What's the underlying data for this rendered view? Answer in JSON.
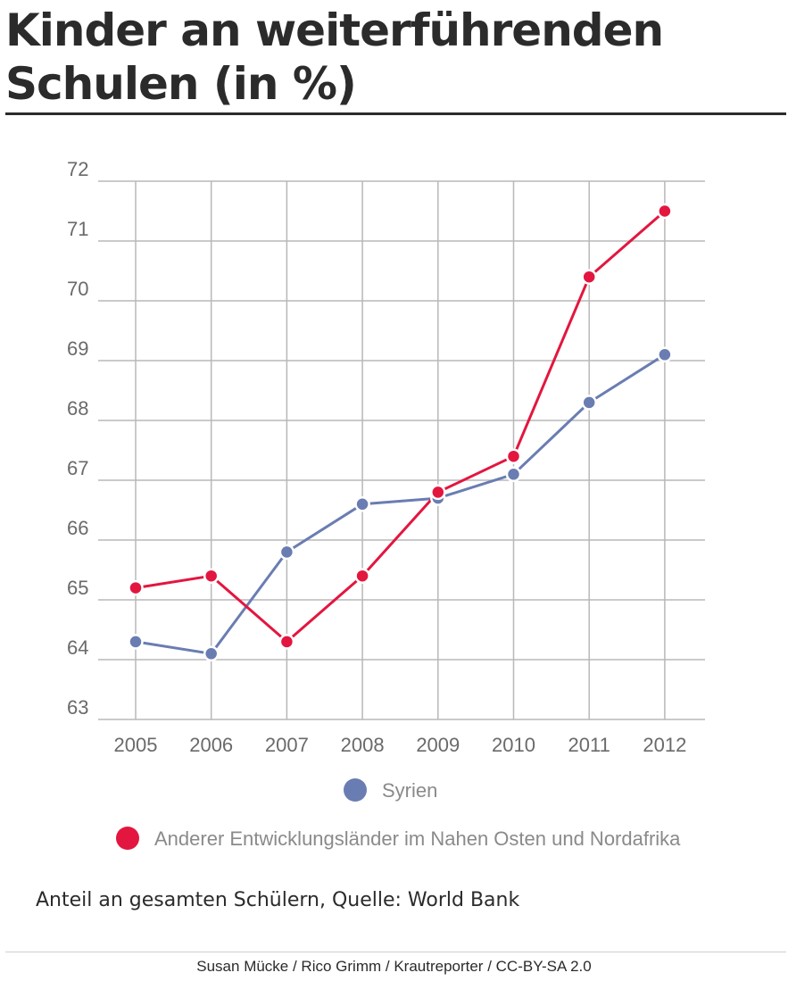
{
  "header": {
    "title": "Kinder an weiterführenden Schulen (in %)"
  },
  "chart_data": {
    "type": "line",
    "title": "Kinder an weiterführenden Schulen (in %)",
    "categories": [
      "2005",
      "2006",
      "2007",
      "2008",
      "2009",
      "2010",
      "2011",
      "2012"
    ],
    "ylim": [
      63,
      72
    ],
    "yticks": [
      "63",
      "64",
      "65",
      "66",
      "67",
      "68",
      "69",
      "70",
      "71",
      "72"
    ],
    "grid": true,
    "series": [
      {
        "name": "Syrien",
        "color": "#6a7db2",
        "values": [
          64.3,
          64.1,
          65.8,
          66.6,
          66.7,
          67.1,
          68.3,
          69.1
        ]
      },
      {
        "name": "Anderer Entwicklungsländer im Nahen Osten und Nordafrika",
        "color": "#e3163f",
        "values": [
          65.2,
          65.4,
          64.3,
          65.4,
          66.8,
          67.4,
          70.4,
          71.5
        ]
      }
    ]
  },
  "caption": "Anteil an gesamten Schülern, Quelle: World Bank",
  "credit": "Susan Mücke / Rico Grimm / Krautreporter / CC-BY-SA 2.0"
}
